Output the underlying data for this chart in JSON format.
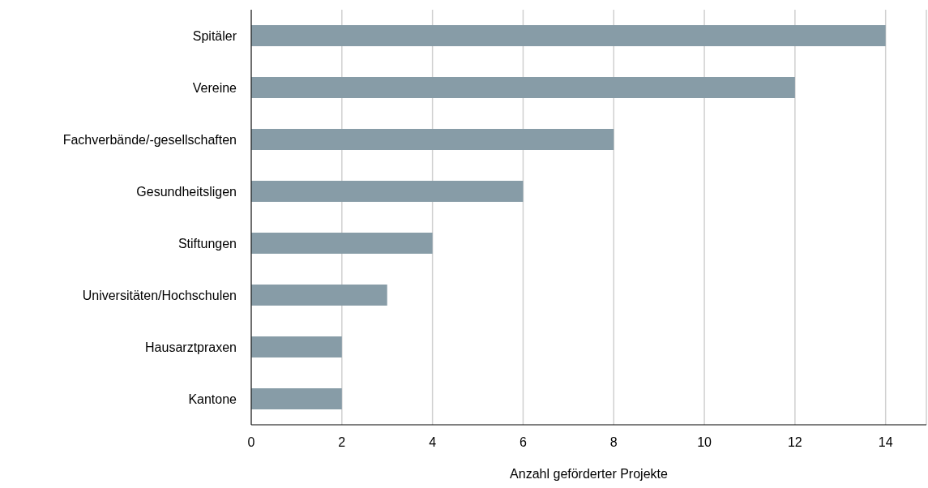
{
  "chart_data": {
    "type": "bar",
    "orientation": "horizontal",
    "xlabel": "Anzahl geförderter Projekte",
    "categories": [
      "Spitäler",
      "Vereine",
      "Fachverbände/-gesellschaften",
      "Gesundheitsligen",
      "Stiftungen",
      "Universitäten/Hochschulen",
      "Hausarztpraxen",
      "Kantone"
    ],
    "values": [
      14,
      12,
      8,
      6,
      4,
      3,
      2,
      2
    ],
    "color": "#879ca7",
    "xlim": [
      0,
      14.9
    ],
    "xticks": [
      0,
      2,
      4,
      6,
      8,
      10,
      12,
      14
    ],
    "grid": "x"
  }
}
